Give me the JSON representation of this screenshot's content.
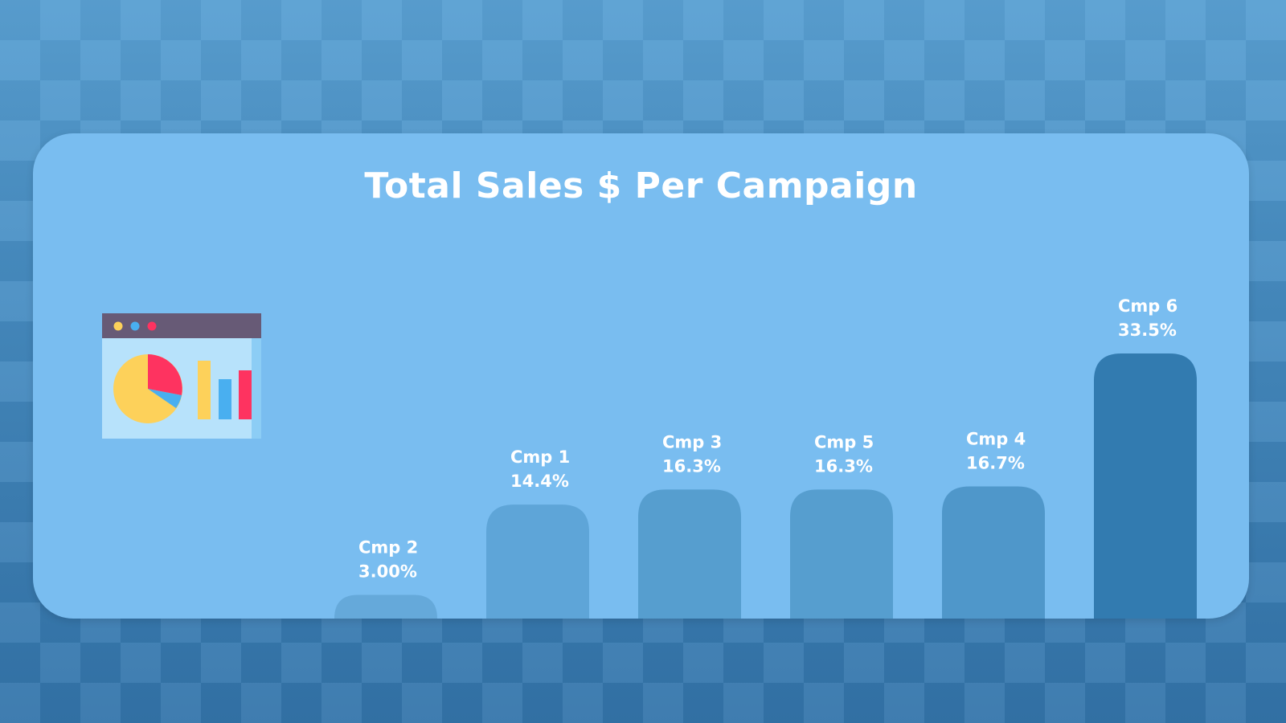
{
  "chart_data": {
    "type": "bar",
    "title": "Total Sales $ Per Campaign",
    "categories": [
      "Cmp 2",
      "Cmp 1",
      "Cmp 3",
      "Cmp 5",
      "Cmp 4",
      "Cmp 6"
    ],
    "values": [
      3.0,
      14.4,
      16.3,
      16.3,
      16.7,
      33.5
    ],
    "value_labels": [
      "3.00%",
      "14.4%",
      "16.3%",
      "16.3%",
      "16.7%",
      "33.5%"
    ],
    "ylim": [
      0,
      33.5
    ],
    "grid": false,
    "legend": "none",
    "colors": {
      "bars": [
        "#65a9da",
        "#5ea5d8",
        "#569ecf",
        "#569ecf",
        "#4f97ca",
        "#327bb0"
      ],
      "card": "#79bdf0",
      "label": "#ffffff"
    }
  },
  "icon": "dashboard-chart-icon"
}
